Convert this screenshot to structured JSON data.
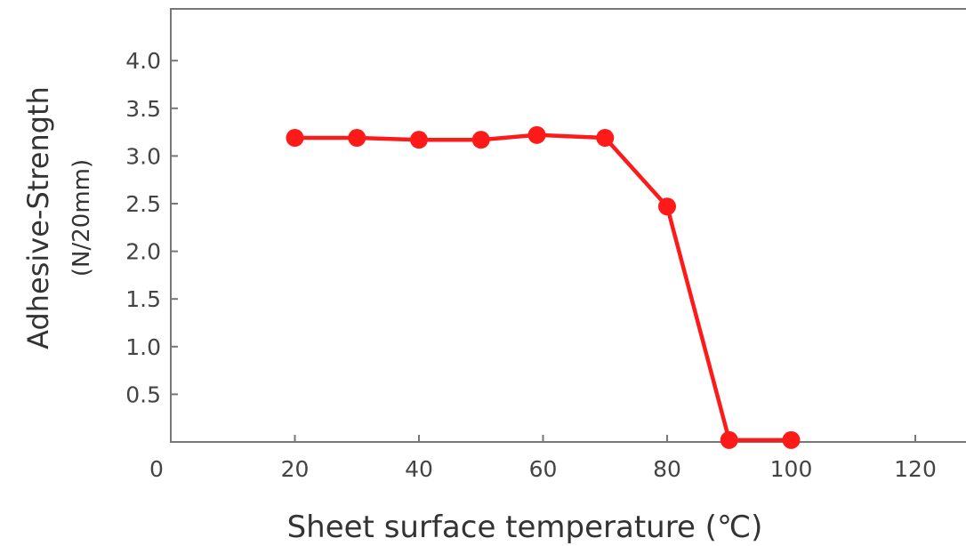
{
  "chart_data": {
    "type": "line",
    "xlabel": "Sheet surface temperature (℃)",
    "ylabel": "Adhesive-Strength",
    "ylabel_unit": "(N/20mm)",
    "xlim": [
      0,
      125
    ],
    "ylim": [
      0,
      4.5
    ],
    "x_ticks": [
      0,
      20,
      40,
      60,
      80,
      100,
      120
    ],
    "y_ticks": [
      0.5,
      1.0,
      1.5,
      2.0,
      2.5,
      3.0,
      3.5,
      4.0
    ],
    "x_tick_labels": [
      "0",
      "20",
      "40",
      "60",
      "80",
      "100",
      "120"
    ],
    "y_tick_labels": [
      "0.5",
      "1.0",
      "1.5",
      "2.0",
      "2.5",
      "3.0",
      "3.5",
      "4.0"
    ],
    "grid": false,
    "series": [
      {
        "color": "#ff1a1a",
        "x": [
          20,
          30,
          40,
          50,
          59,
          70,
          80,
          90,
          100
        ],
        "y": [
          3.19,
          3.19,
          3.17,
          3.17,
          3.22,
          3.19,
          2.47,
          0.02,
          0.02
        ]
      }
    ]
  }
}
